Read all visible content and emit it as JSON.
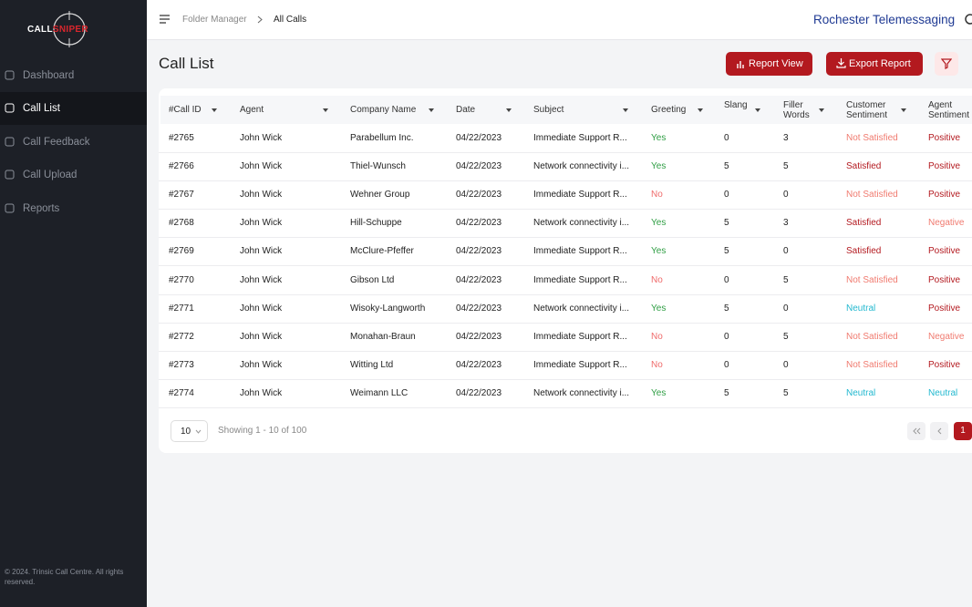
{
  "sidebar": {
    "logo": {
      "part1": "CALL",
      "part2": "SNIPER"
    },
    "nav": [
      "Dashboard",
      "Call List",
      "Call Feedback",
      "Call Upload",
      "Reports"
    ],
    "footer": "© 2024. Trinsic Call Centre. All rights reserved."
  },
  "topbar": {
    "breadcrumb": [
      "Folder Manager",
      "All Calls"
    ],
    "organization": "Rochester Telemessaging"
  },
  "page": {
    "title": "Call List",
    "buttons": [
      "Report View",
      "Export Report"
    ]
  },
  "table": {
    "headers": [
      "#Call ID",
      "Agent",
      "Company Name",
      "Date",
      "Subject",
      "Greeting",
      "Slang",
      "Filler Words",
      "Customer Sentiment",
      "Agent Sentiment"
    ],
    "rows": [
      [
        "#2765",
        "John Wick",
        "Parabellum Inc.",
        "04/22/2023",
        "Immediate Support R...",
        "Yes",
        0,
        3,
        "Not Satisfied",
        "Positive"
      ],
      [
        "#2766",
        "John Wick",
        "Thiel-Wunsch",
        "04/22/2023",
        "Network connectivity i...",
        "Yes",
        5,
        5,
        "Satisfied",
        "Positive"
      ],
      [
        "#2767",
        "John Wick",
        "Wehner Group",
        "04/22/2023",
        "Immediate Support R...",
        "No",
        0,
        0,
        "Not Satisfied",
        "Positive"
      ],
      [
        "#2768",
        "John Wick",
        "Hill-Schuppe",
        "04/22/2023",
        "Network connectivity i...",
        "Yes",
        5,
        3,
        "Satisfied",
        "Negative"
      ],
      [
        "#2769",
        "John Wick",
        "McClure-Pfeffer",
        "04/22/2023",
        "Immediate Support R...",
        "Yes",
        5,
        0,
        "Satisfied",
        "Positive"
      ],
      [
        "#2770",
        "John Wick",
        "Gibson Ltd",
        "04/22/2023",
        "Immediate Support R...",
        "No",
        0,
        5,
        "Not Satisfied",
        "Positive"
      ],
      [
        "#2771",
        "John Wick",
        "Wisoky-Langworth",
        "04/22/2023",
        "Network connectivity i...",
        "Yes",
        5,
        0,
        "Neutral",
        "Positive"
      ],
      [
        "#2772",
        "John Wick",
        "Monahan-Braun",
        "04/22/2023",
        "Immediate Support R...",
        "No",
        0,
        5,
        "Not Satisfied",
        "Negative"
      ],
      [
        "#2773",
        "John Wick",
        "Witting Ltd",
        "04/22/2023",
        "Immediate Support R...",
        "No",
        0,
        0,
        "Not Satisfied",
        "Positive"
      ],
      [
        "#2774",
        "John Wick",
        "Weimann LLC",
        "04/22/2023",
        "Network connectivity i...",
        "Yes",
        5,
        5,
        "Neutral",
        "Neutral"
      ]
    ],
    "value_colors": {
      "Yes": "#2f9e44",
      "No": "#ef6b6b",
      "Not Satisfied": "#f07a6f",
      "Satisfied": "#b3191f",
      "Neutral": "#22b8cf",
      "Positive": "#b3191f",
      "Negative": "#f07a6f"
    }
  },
  "pagination": {
    "page_size": 10,
    "summary": "Showing 1 - 10 of 100",
    "pages": [
      1
    ]
  }
}
